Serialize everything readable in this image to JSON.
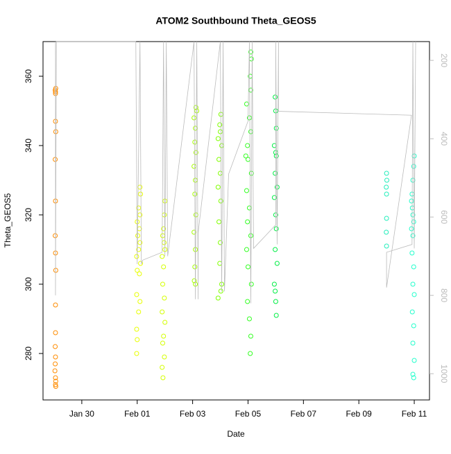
{
  "chart_data": {
    "type": "scatter",
    "title": "ATOM2 Southbound Theta_GEOS5",
    "x_label": "Date",
    "y_label": "Theta_GEOS5",
    "xlim": [
      28.6,
      42.55
    ],
    "xticks": [
      {
        "value": 30,
        "label": "Jan 30"
      },
      {
        "value": 32,
        "label": "Feb 01"
      },
      {
        "value": 34,
        "label": "Feb 03"
      },
      {
        "value": 36,
        "label": "Feb 05"
      },
      {
        "value": 38,
        "label": "Feb 07"
      },
      {
        "value": 40,
        "label": "Feb 09"
      },
      {
        "value": 42,
        "label": "Feb 11"
      }
    ],
    "ylim": [
      266.6,
      370
    ],
    "yticks": [
      280,
      300,
      320,
      340,
      360
    ],
    "y2lim": [
      1067,
      152
    ],
    "y2ticks": [
      200,
      400,
      600,
      800,
      1000
    ],
    "y2_color": "#bbbbbb",
    "series": [
      {
        "color": "#ff8c00",
        "x": [
          29.04,
          29.05,
          29.06,
          29.05,
          29.05,
          29.06,
          29.04,
          29.05,
          29.04,
          29.05,
          29.06,
          29.05,
          29.05,
          29.04,
          29.05,
          29.04,
          29.03,
          29.05,
          29.06,
          29.05,
          29.06
        ],
        "values": [
          356,
          355.5,
          356.5,
          355,
          347,
          344,
          336,
          324,
          314,
          309,
          304,
          294,
          286,
          282,
          279,
          277,
          275,
          273,
          272,
          271,
          270.5
        ]
      },
      {
        "color": "#e8ff00",
        "x": [
          32.1,
          32.12,
          32.05,
          32.1,
          32.0,
          32.08,
          32.02,
          32.1,
          32.05,
          31.98,
          32.12,
          32.0,
          32.08,
          31.98,
          32.1,
          32.05,
          31.98,
          32.0,
          31.98
        ],
        "values": [
          328,
          326,
          322,
          320,
          318,
          316,
          314,
          312,
          310,
          308,
          306,
          304,
          303,
          297,
          295,
          292,
          287,
          284,
          280
        ]
      },
      {
        "color": "#d4ff00",
        "x": [
          33.0,
          32.98,
          32.95,
          32.92,
          32.97,
          33.0,
          32.9,
          32.95,
          32.92,
          32.98,
          32.9,
          33.0,
          32.95,
          32.92,
          32.98,
          32.9,
          32.93
        ],
        "values": [
          324,
          320,
          316,
          314,
          312,
          310,
          308,
          305,
          300,
          296,
          292,
          289,
          285,
          283,
          279,
          276,
          273
        ]
      },
      {
        "color": "#a6ff00",
        "x": [
          34.12,
          34.15,
          34.05,
          34.1,
          34.08,
          34.12,
          34.05,
          34.1,
          34.08,
          34.12,
          34.05,
          34.1,
          34.08,
          34.06,
          34.1
        ],
        "values": [
          351,
          350,
          348,
          345,
          341,
          338,
          334,
          330,
          326,
          320,
          315,
          310,
          305,
          301,
          300
        ]
      },
      {
        "color": "#80ff00",
        "x": [
          35.02,
          34.98,
          35.0,
          34.92,
          35.05,
          34.95,
          35.0,
          34.92,
          35.02,
          34.95,
          35.0,
          34.98,
          35.05,
          35.02,
          34.92
        ],
        "values": [
          349,
          346,
          344,
          342,
          340,
          336,
          332,
          328,
          324,
          318,
          312,
          306,
          300,
          298,
          296
        ]
      },
      {
        "color": "#33ff22",
        "x": [
          36.1,
          36.12,
          36.08,
          36.1,
          35.95,
          36.05,
          36.1,
          35.98,
          35.92,
          36.0,
          36.12,
          35.95,
          36.05,
          35.98,
          36.1,
          35.95,
          36.0,
          36.12,
          35.98,
          36.05,
          36.1,
          36.08
        ],
        "values": [
          367,
          365,
          360,
          356,
          352,
          348,
          344,
          340,
          337,
          336,
          332,
          327,
          322,
          318,
          314,
          310,
          305,
          300,
          295,
          290,
          285,
          280
        ]
      },
      {
        "color": "#00ee44",
        "x": [
          36.98,
          37.0,
          37.02,
          36.95,
          37.0,
          37.02,
          36.98,
          37.05,
          36.95,
          37.0,
          37.02,
          36.98,
          37.05,
          36.95,
          36.98,
          37.0,
          37.02
        ],
        "values": [
          354,
          350,
          345,
          340,
          338,
          337,
          332,
          328,
          325,
          320,
          316,
          310,
          306,
          300,
          298,
          295,
          291
        ]
      },
      {
        "color": "#22eebb",
        "x": [
          41.0,
          41.01,
          40.99,
          41.0,
          41.0,
          40.99,
          41.0
        ],
        "values": [
          332,
          330,
          328,
          326,
          319,
          315,
          311
        ]
      },
      {
        "color": "#22ffcc",
        "x": [
          42.0,
          41.98,
          41.95,
          41.92,
          41.9,
          41.93,
          41.95,
          41.98,
          41.9,
          41.95,
          41.92,
          41.98,
          41.95,
          42.0,
          41.93,
          41.98,
          41.95,
          42.0,
          41.95,
          41.98
        ],
        "values": [
          337,
          334,
          330,
          326,
          324,
          322,
          320,
          318,
          316,
          314,
          309,
          305,
          300,
          297,
          292,
          288,
          283,
          278,
          274,
          273
        ]
      },
      {
        "type": "line",
        "axis": "y2",
        "color": "#bbbbbb",
        "x": [
          29.05,
          29.05,
          29.08,
          31.95,
          32.0,
          32.1,
          32.15,
          32.2,
          32.9,
          32.95,
          33.0,
          33.05,
          33.1,
          34.05,
          34.1,
          34.15,
          34.2,
          34.2,
          35.0,
          35.05,
          35.1,
          35.15,
          35.3,
          36.0,
          36.05,
          36.1,
          36.15,
          36.2,
          37.0,
          37.0,
          37.05,
          37.1,
          37.1,
          41.9,
          41.0,
          41.0,
          41.92,
          41.95,
          42.0,
          42.05
        ],
        "values": [
          152,
          800,
          152,
          152,
          720,
          152,
          720,
          710,
          690,
          152,
          700,
          152,
          700,
          152,
          810,
          152,
          810,
          640,
          152,
          790,
          152,
          790,
          490,
          355,
          152,
          820,
          152,
          680,
          620,
          152,
          670,
          152,
          330,
          340,
          780,
          690,
          670,
          152,
          680,
          152
        ]
      }
    ]
  }
}
